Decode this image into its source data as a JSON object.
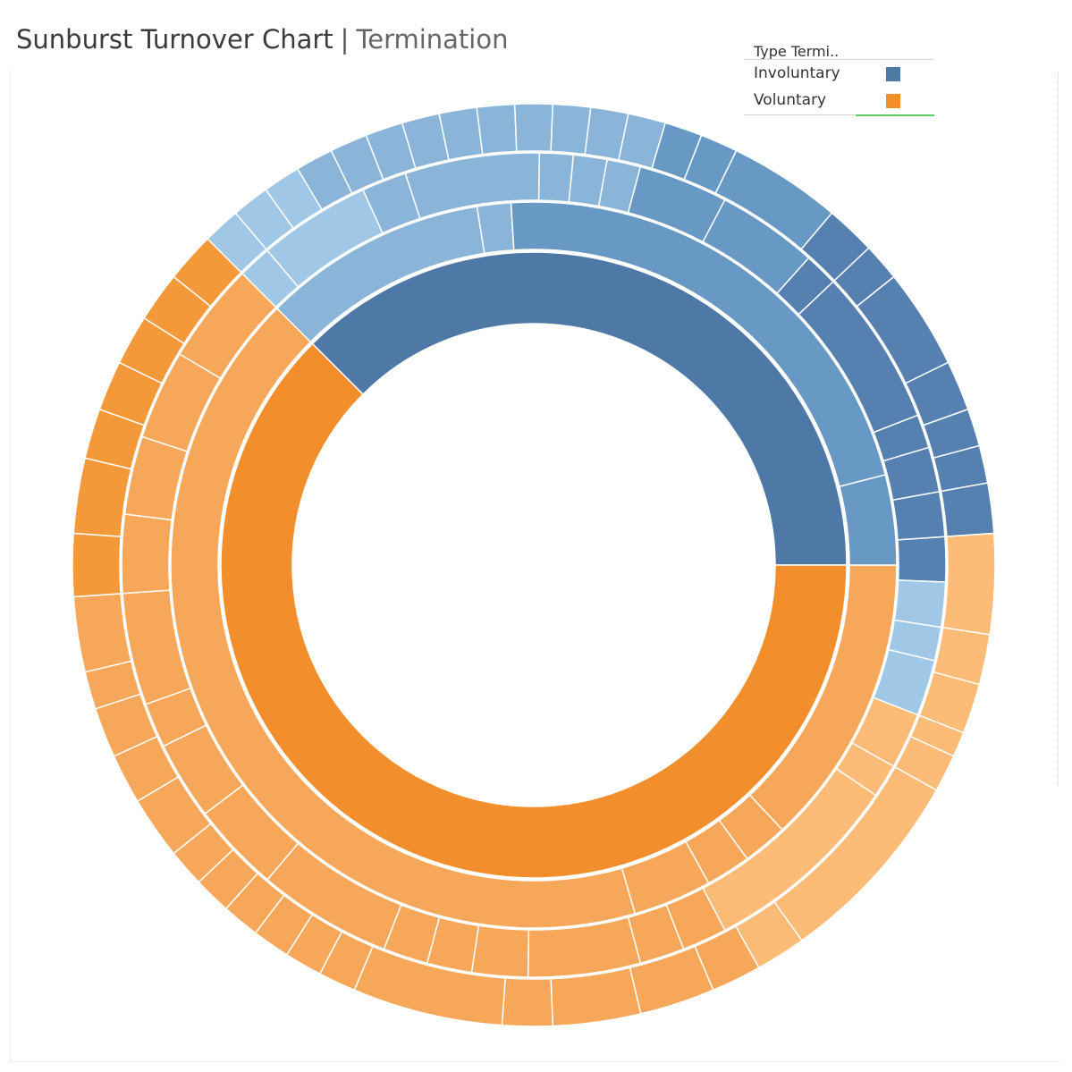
{
  "header": {
    "title": "Sunburst Turnover Chart",
    "separator": "|",
    "subtitle": "Termination"
  },
  "legend": {
    "title": "Type Termi..",
    "items": [
      {
        "label": "Involuntary",
        "color": "#4e79a7"
      },
      {
        "label": "Voluntary",
        "color": "#f28e2b"
      }
    ]
  },
  "chart_data": {
    "type": "sunburst",
    "start_angle_deg": 0,
    "direction": "clockwise-from-3-oclock",
    "categories": [
      "Involuntary",
      "Voluntary"
    ],
    "rings": [
      {
        "level": 1,
        "segments": [
          {
            "category": "Involuntary",
            "value": 37.5
          },
          {
            "category": "Voluntary",
            "value": 62.5
          }
        ]
      },
      {
        "level": 2,
        "segments": [
          {
            "category": "Voluntary",
            "value": 13.0
          },
          {
            "category": "Voluntary",
            "value": 2.0
          },
          {
            "category": "Voluntary",
            "value": 2.0
          },
          {
            "category": "Voluntary",
            "value": 3.5
          },
          {
            "category": "Voluntary",
            "value": 42.0
          },
          {
            "category": "Involuntary",
            "value": 10.0
          },
          {
            "category": "Involuntary",
            "value": 1.5
          },
          {
            "category": "Involuntary",
            "value": 22.0
          },
          {
            "category": "Involuntary",
            "value": 4.0
          }
        ]
      },
      {
        "level": 3,
        "segments": [
          {
            "category": "Involuntary",
            "value": 1.5
          },
          {
            "category": "Involuntary",
            "value": 5.0
          },
          {
            "category": "Involuntary",
            "value": 2.0
          },
          {
            "category": "Involuntary",
            "value": 6.0
          },
          {
            "category": "Involuntary",
            "value": 1.5
          },
          {
            "category": "Involuntary",
            "value": 1.5
          },
          {
            "category": "Involuntary",
            "value": 1.5
          },
          {
            "category": "Involuntary",
            "value": 4.0
          },
          {
            "category": "Involuntary",
            "value": 4.5
          },
          {
            "category": "Involuntary",
            "value": 1.5
          },
          {
            "category": "Involuntary",
            "value": 7.0
          },
          {
            "category": "Involuntary",
            "value": 1.5
          },
          {
            "category": "Involuntary",
            "value": 2.0
          },
          {
            "category": "Involuntary",
            "value": 2.0
          },
          {
            "category": "Involuntary",
            "value": 2.0
          },
          {
            "category": "Involuntary",
            "value": 2.0
          },
          {
            "category": "Involuntary",
            "value": 1.5
          },
          {
            "category": "Involuntary",
            "value": 2.5
          },
          {
            "category": "Voluntary",
            "value": 2.5
          },
          {
            "category": "Voluntary",
            "value": 1.5
          },
          {
            "category": "Voluntary",
            "value": 9.0
          },
          {
            "category": "Voluntary",
            "value": 2.0
          },
          {
            "category": "Voluntary",
            "value": 2.0
          },
          {
            "category": "Voluntary",
            "value": 5.0
          },
          {
            "category": "Voluntary",
            "value": 2.5
          },
          {
            "category": "Voluntary",
            "value": 2.0
          },
          {
            "category": "Voluntary",
            "value": 2.0
          },
          {
            "category": "Voluntary",
            "value": 6.0
          },
          {
            "category": "Voluntary",
            "value": 4.0
          },
          {
            "category": "Voluntary",
            "value": 3.5
          },
          {
            "category": "Voluntary",
            "value": 2.0
          },
          {
            "category": "Voluntary",
            "value": 5.0
          },
          {
            "category": "Voluntary",
            "value": 3.5
          },
          {
            "category": "Voluntary",
            "value": 3.5
          },
          {
            "category": "Voluntary",
            "value": 4.0
          },
          {
            "category": "Voluntary",
            "value": 4.5
          }
        ]
      },
      {
        "level": 4,
        "segments": [
          {
            "category": "Involuntary",
            "value": 1.5
          },
          {
            "category": "Involuntary",
            "value": 1.5
          },
          {
            "category": "Involuntary",
            "value": 1.5
          },
          {
            "category": "Involuntary",
            "value": 1.5
          },
          {
            "category": "Involuntary",
            "value": 1.5
          },
          {
            "category": "Involuntary",
            "value": 1.5
          },
          {
            "category": "Involuntary",
            "value": 1.5
          },
          {
            "category": "Involuntary",
            "value": 1.5
          },
          {
            "category": "Involuntary",
            "value": 1.5
          },
          {
            "category": "Involuntary",
            "value": 1.5
          },
          {
            "category": "Involuntary",
            "value": 1.5
          },
          {
            "category": "Involuntary",
            "value": 1.5
          },
          {
            "category": "Involuntary",
            "value": 1.5
          },
          {
            "category": "Involuntary",
            "value": 1.5
          },
          {
            "category": "Involuntary",
            "value": 1.5
          },
          {
            "category": "Involuntary",
            "value": 4.5
          },
          {
            "category": "Involuntary",
            "value": 2.0
          },
          {
            "category": "Involuntary",
            "value": 1.5
          },
          {
            "category": "Involuntary",
            "value": 4.0
          },
          {
            "category": "Involuntary",
            "value": 2.0
          },
          {
            "category": "Involuntary",
            "value": 1.5
          },
          {
            "category": "Involuntary",
            "value": 1.5
          },
          {
            "category": "Involuntary",
            "value": 2.0
          },
          {
            "category": "Voluntary",
            "value": 4.0
          },
          {
            "category": "Voluntary",
            "value": 2.0
          },
          {
            "category": "Voluntary",
            "value": 2.0
          },
          {
            "category": "Voluntary",
            "value": 1.0
          },
          {
            "category": "Voluntary",
            "value": 1.5
          },
          {
            "category": "Voluntary",
            "value": 8.0
          },
          {
            "category": "Voluntary",
            "value": 2.0
          },
          {
            "category": "Voluntary",
            "value": 2.0
          },
          {
            "category": "Voluntary",
            "value": 3.0
          },
          {
            "category": "Voluntary",
            "value": 3.5
          },
          {
            "category": "Voluntary",
            "value": 2.0
          },
          {
            "category": "Voluntary",
            "value": 6.0
          },
          {
            "category": "Voluntary",
            "value": 1.5
          },
          {
            "category": "Voluntary",
            "value": 1.5
          },
          {
            "category": "Voluntary",
            "value": 1.5
          },
          {
            "category": "Voluntary",
            "value": 1.5
          },
          {
            "category": "Voluntary",
            "value": 1.5
          },
          {
            "category": "Voluntary",
            "value": 1.5
          },
          {
            "category": "Voluntary",
            "value": 2.5
          },
          {
            "category": "Voluntary",
            "value": 2.0
          },
          {
            "category": "Voluntary",
            "value": 2.0
          },
          {
            "category": "Voluntary",
            "value": 1.5
          },
          {
            "category": "Voluntary",
            "value": 3.0
          },
          {
            "category": "Voluntary",
            "value": 2.5
          },
          {
            "category": "Voluntary",
            "value": 3.0
          },
          {
            "category": "Voluntary",
            "value": 2.0
          },
          {
            "category": "Voluntary",
            "value": 2.0
          },
          {
            "category": "Voluntary",
            "value": 2.0
          },
          {
            "category": "Voluntary",
            "value": 2.0
          },
          {
            "category": "Voluntary",
            "value": 2.0
          }
        ]
      }
    ],
    "level_colors": {
      "Involuntary": [
        "#4e79a7",
        "#5580b0",
        "#6898c4",
        "#8ab5d9",
        "#a0c8e6"
      ],
      "Voluntary": [
        "#f28e2b",
        "#f4993a",
        "#f7a75a",
        "#fdbb78"
      ]
    }
  }
}
